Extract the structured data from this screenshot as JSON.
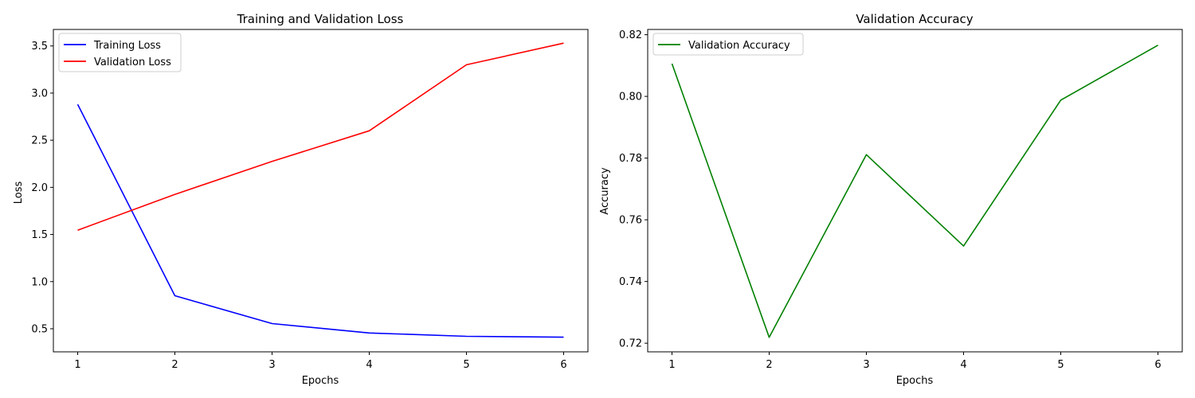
{
  "chart_data": [
    {
      "type": "line",
      "title": "Training and Validation Loss",
      "xlabel": "Epochs",
      "ylabel": "Loss",
      "x": [
        1,
        2,
        3,
        4,
        5,
        6
      ],
      "xticks": [
        1,
        2,
        3,
        4,
        5,
        6
      ],
      "yticks": [
        0.5,
        1.0,
        1.5,
        2.0,
        2.5,
        3.0,
        3.5
      ],
      "ytick_labels": [
        "0.5",
        "1.0",
        "1.5",
        "2.0",
        "2.5",
        "3.0",
        "3.5"
      ],
      "xlim": [
        0.75,
        6.25
      ],
      "ylim": [
        0.255,
        3.675
      ],
      "grid": false,
      "legend_position": "upper left",
      "series": [
        {
          "name": "Training Loss",
          "color": "#0000ff",
          "values": [
            2.88,
            0.85,
            0.555,
            0.455,
            0.42,
            0.41
          ]
        },
        {
          "name": "Validation Loss",
          "color": "#ff0000",
          "values": [
            1.545,
            1.925,
            2.275,
            2.6,
            3.3,
            3.53
          ]
        }
      ]
    },
    {
      "type": "line",
      "title": "Validation Accuracy",
      "xlabel": "Epochs",
      "ylabel": "Accuracy",
      "x": [
        1,
        2,
        3,
        4,
        5,
        6
      ],
      "xticks": [
        1,
        2,
        3,
        4,
        5,
        6
      ],
      "yticks": [
        0.72,
        0.74,
        0.76,
        0.78,
        0.8,
        0.82
      ],
      "ytick_labels": [
        "0.72",
        "0.74",
        "0.76",
        "0.78",
        "0.80",
        "0.82"
      ],
      "xlim": [
        0.75,
        6.25
      ],
      "ylim": [
        0.7172,
        0.8217
      ],
      "grid": false,
      "legend_position": "upper left",
      "series": [
        {
          "name": "Validation Accuracy",
          "color": "#008000",
          "values": [
            0.8106,
            0.7219,
            0.7811,
            0.7515,
            0.7988,
            0.8166
          ]
        }
      ]
    }
  ]
}
